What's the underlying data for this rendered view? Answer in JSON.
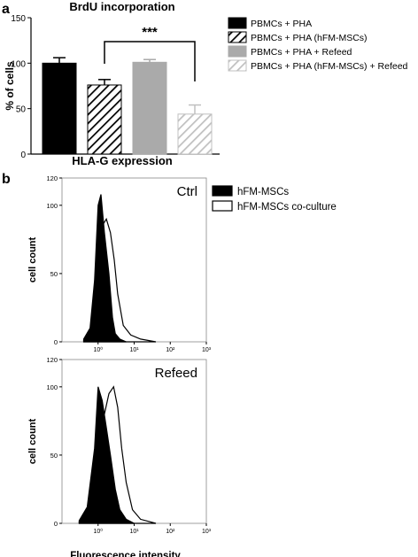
{
  "panel_a": {
    "letter": "a",
    "title": "BrdU incorporation",
    "subtitle": "HLA-G expression",
    "significance": "***"
  },
  "panel_b": {
    "letter": "b"
  },
  "chart_data": [
    {
      "type": "bar",
      "title": "BrdU incorporation",
      "xlabel": "",
      "ylabel": "% of cells",
      "ylim": [
        0,
        150
      ],
      "yticks": [
        "0",
        "50",
        "100",
        "150"
      ],
      "categories": [
        "PBMCs + PHA",
        "PBMCs + PHA (hFM-MSCs)",
        "PBMCs + PHA + Refeed",
        "PBMCs + PHA (hFM-MSCs) + Refeed"
      ],
      "values": [
        100,
        76,
        101,
        44
      ],
      "errors": [
        6,
        6,
        3,
        10
      ],
      "bar_colors": [
        "#000000",
        "hatched-black",
        "#aaaaaa",
        "hatched-gray"
      ],
      "legend_placement": "right",
      "annotation": "***"
    },
    {
      "type": "area",
      "title": "Ctrl",
      "xlabel": "",
      "ylabel": "cell count",
      "xscale": "log",
      "xlim": [
        0.1,
        1000
      ],
      "ylim": [
        0,
        120
      ],
      "xticks": [
        "10⁰",
        "10¹",
        "10²",
        "10³"
      ],
      "yticks": [
        "0",
        "50",
        "100",
        "120"
      ],
      "series": [
        {
          "name": "hFM-MSCs",
          "fill": "#000000",
          "x": [
            0.4,
            0.6,
            0.8,
            1.0,
            1.2,
            1.5,
            2.0,
            2.5,
            3.0,
            4.0,
            6.0
          ],
          "values": [
            2,
            10,
            45,
            100,
            108,
            80,
            50,
            18,
            6,
            2,
            0
          ]
        },
        {
          "name": "hFM-MSCs co-culture",
          "fill": "#ffffff",
          "x": [
            0.4,
            0.6,
            0.8,
            1.0,
            1.3,
            1.7,
            2.2,
            2.8,
            3.5,
            5.0,
            8.0,
            15.0,
            40.0
          ],
          "values": [
            1,
            5,
            25,
            60,
            85,
            90,
            80,
            60,
            35,
            12,
            5,
            2,
            0
          ]
        }
      ],
      "legend_placement": "top-right"
    },
    {
      "type": "area",
      "title": "Refeed",
      "xlabel": "Fluorescence intensity",
      "ylabel": "cell count",
      "xscale": "log",
      "xlim": [
        0.1,
        1000
      ],
      "ylim": [
        0,
        120
      ],
      "xticks": [
        "10⁰",
        "10¹",
        "10²",
        "10³"
      ],
      "yticks": [
        "0",
        "50",
        "100",
        "120"
      ],
      "series": [
        {
          "name": "hFM-MSCs",
          "fill": "#000000",
          "x": [
            0.3,
            0.5,
            0.8,
            1.0,
            1.3,
            1.7,
            2.2,
            3.0,
            4.0,
            6.0,
            10.0
          ],
          "values": [
            2,
            12,
            55,
            100,
            90,
            70,
            50,
            25,
            10,
            3,
            0
          ]
        },
        {
          "name": "hFM-MSCs co-culture",
          "fill": "#ffffff",
          "x": [
            0.3,
            0.6,
            1.0,
            1.5,
            2.0,
            2.7,
            3.5,
            4.5,
            6.0,
            9.0,
            15.0,
            40.0
          ],
          "values": [
            1,
            10,
            45,
            80,
            95,
            100,
            85,
            55,
            30,
            10,
            3,
            0
          ]
        }
      ]
    }
  ]
}
